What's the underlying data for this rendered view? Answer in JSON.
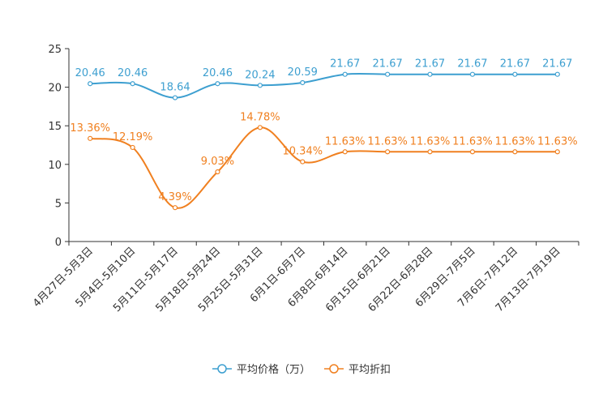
{
  "chart_data": {
    "type": "line",
    "title": "",
    "xlabel": "",
    "ylabel": "",
    "ylim": [
      0,
      25
    ],
    "yticks": [
      0,
      5,
      10,
      15,
      20,
      25
    ],
    "grid": false,
    "legend_position": "bottom-center",
    "categories": [
      "4月27日-5月3日",
      "5月4日-5月10日",
      "5月11日-5月17日",
      "5月18日-5月24日",
      "5月25日-5月31日",
      "6月1日-6月7日",
      "6月8日-6月14日",
      "6月15日-6月21日",
      "6月22日-6月28日",
      "6月29日-7月5日",
      "7月6日-7月12日",
      "7月13日-7月19日"
    ],
    "series": [
      {
        "name": "平均价格（万）",
        "color": "#3d9fd0",
        "values": [
          20.46,
          20.46,
          18.64,
          20.46,
          20.24,
          20.59,
          21.67,
          21.67,
          21.67,
          21.67,
          21.67,
          21.67
        ],
        "labels": [
          "20.46",
          "20.46",
          "18.64",
          "20.46",
          "20.24",
          "20.59",
          "21.67",
          "21.67",
          "21.67",
          "21.67",
          "21.67",
          "21.67"
        ]
      },
      {
        "name": "平均折扣",
        "color": "#f08020",
        "values": [
          13.36,
          12.19,
          4.39,
          9.03,
          14.78,
          10.34,
          11.63,
          11.63,
          11.63,
          11.63,
          11.63,
          11.63
        ],
        "labels": [
          "13.36%",
          "12.19%",
          "4.39%",
          "9.03%",
          "14.78%",
          "10.34%",
          "11.63%",
          "11.63%",
          "11.63%",
          "11.63%",
          "11.63%",
          "11.63%"
        ]
      }
    ]
  }
}
